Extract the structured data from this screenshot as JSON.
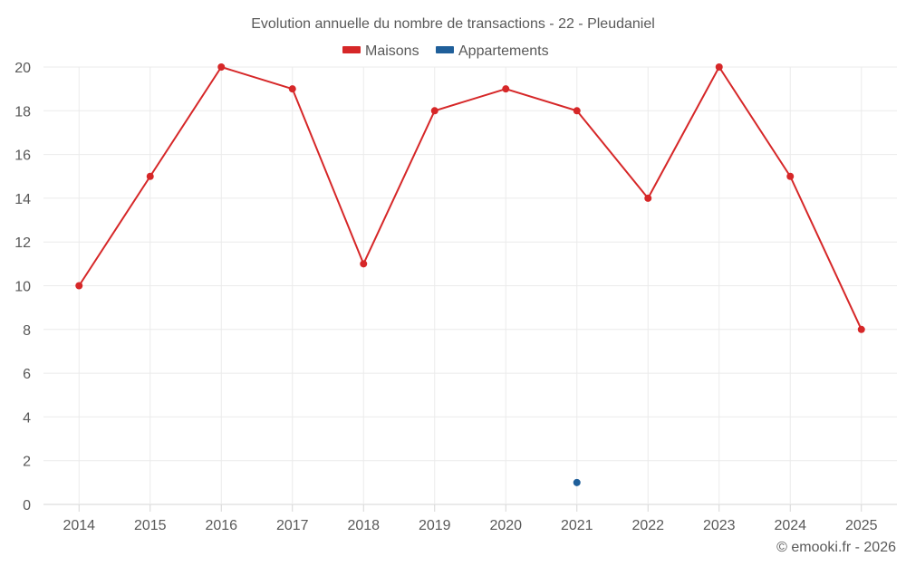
{
  "chart_data": {
    "type": "line",
    "title": "Evolution annuelle du nombre de transactions - 22 - Pleudaniel",
    "xlabel": "",
    "ylabel": "",
    "categories": [
      "2014",
      "2015",
      "2016",
      "2017",
      "2018",
      "2019",
      "2020",
      "2021",
      "2022",
      "2023",
      "2024",
      "2025"
    ],
    "yticks": [
      0,
      2,
      4,
      6,
      8,
      10,
      12,
      14,
      16,
      18,
      20
    ],
    "ylim": [
      0,
      20
    ],
    "grid": true,
    "legend_position": "top-center",
    "series": [
      {
        "name": "Maisons",
        "color": "#d62728",
        "values": [
          10,
          15,
          20,
          19,
          11,
          18,
          19,
          18,
          14,
          20,
          15,
          8
        ]
      },
      {
        "name": "Appartements",
        "color": "#1f5f9a",
        "values": [
          null,
          null,
          null,
          null,
          null,
          null,
          null,
          1,
          null,
          null,
          null,
          null
        ]
      }
    ]
  },
  "credit": "© emooki.fr - 2026"
}
